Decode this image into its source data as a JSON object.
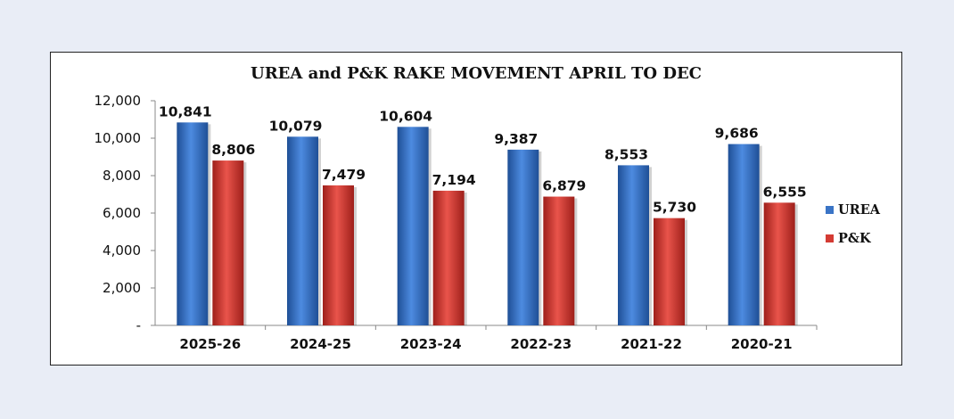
{
  "chart_data": {
    "type": "bar",
    "title": "UREA and P&K RAKE MOVEMENT APRIL TO DEC",
    "categories": [
      "2025-26",
      "2024-25",
      "2023-24",
      "2022-23",
      "2021-22",
      "2020-21"
    ],
    "series": [
      {
        "name": "UREA",
        "color": "#3a74c6",
        "values": [
          10841,
          10079,
          10604,
          9387,
          8553,
          9686
        ],
        "labels": [
          "10,841",
          "10,079",
          "10,604",
          "9,387",
          "8,553",
          "9,686"
        ]
      },
      {
        "name": "P&K",
        "color": "#d43b33",
        "values": [
          8806,
          7479,
          7194,
          6879,
          5730,
          6555
        ],
        "labels": [
          "8,806",
          "7,479",
          "7,194",
          "6,879",
          "5,730",
          "6,555"
        ]
      }
    ],
    "yticks": [
      "-",
      "2,000",
      "4,000",
      "6,000",
      "8,000",
      "10,000",
      "12,000"
    ],
    "ylim": [
      0,
      12000
    ],
    "grid": false,
    "legend": "right"
  }
}
